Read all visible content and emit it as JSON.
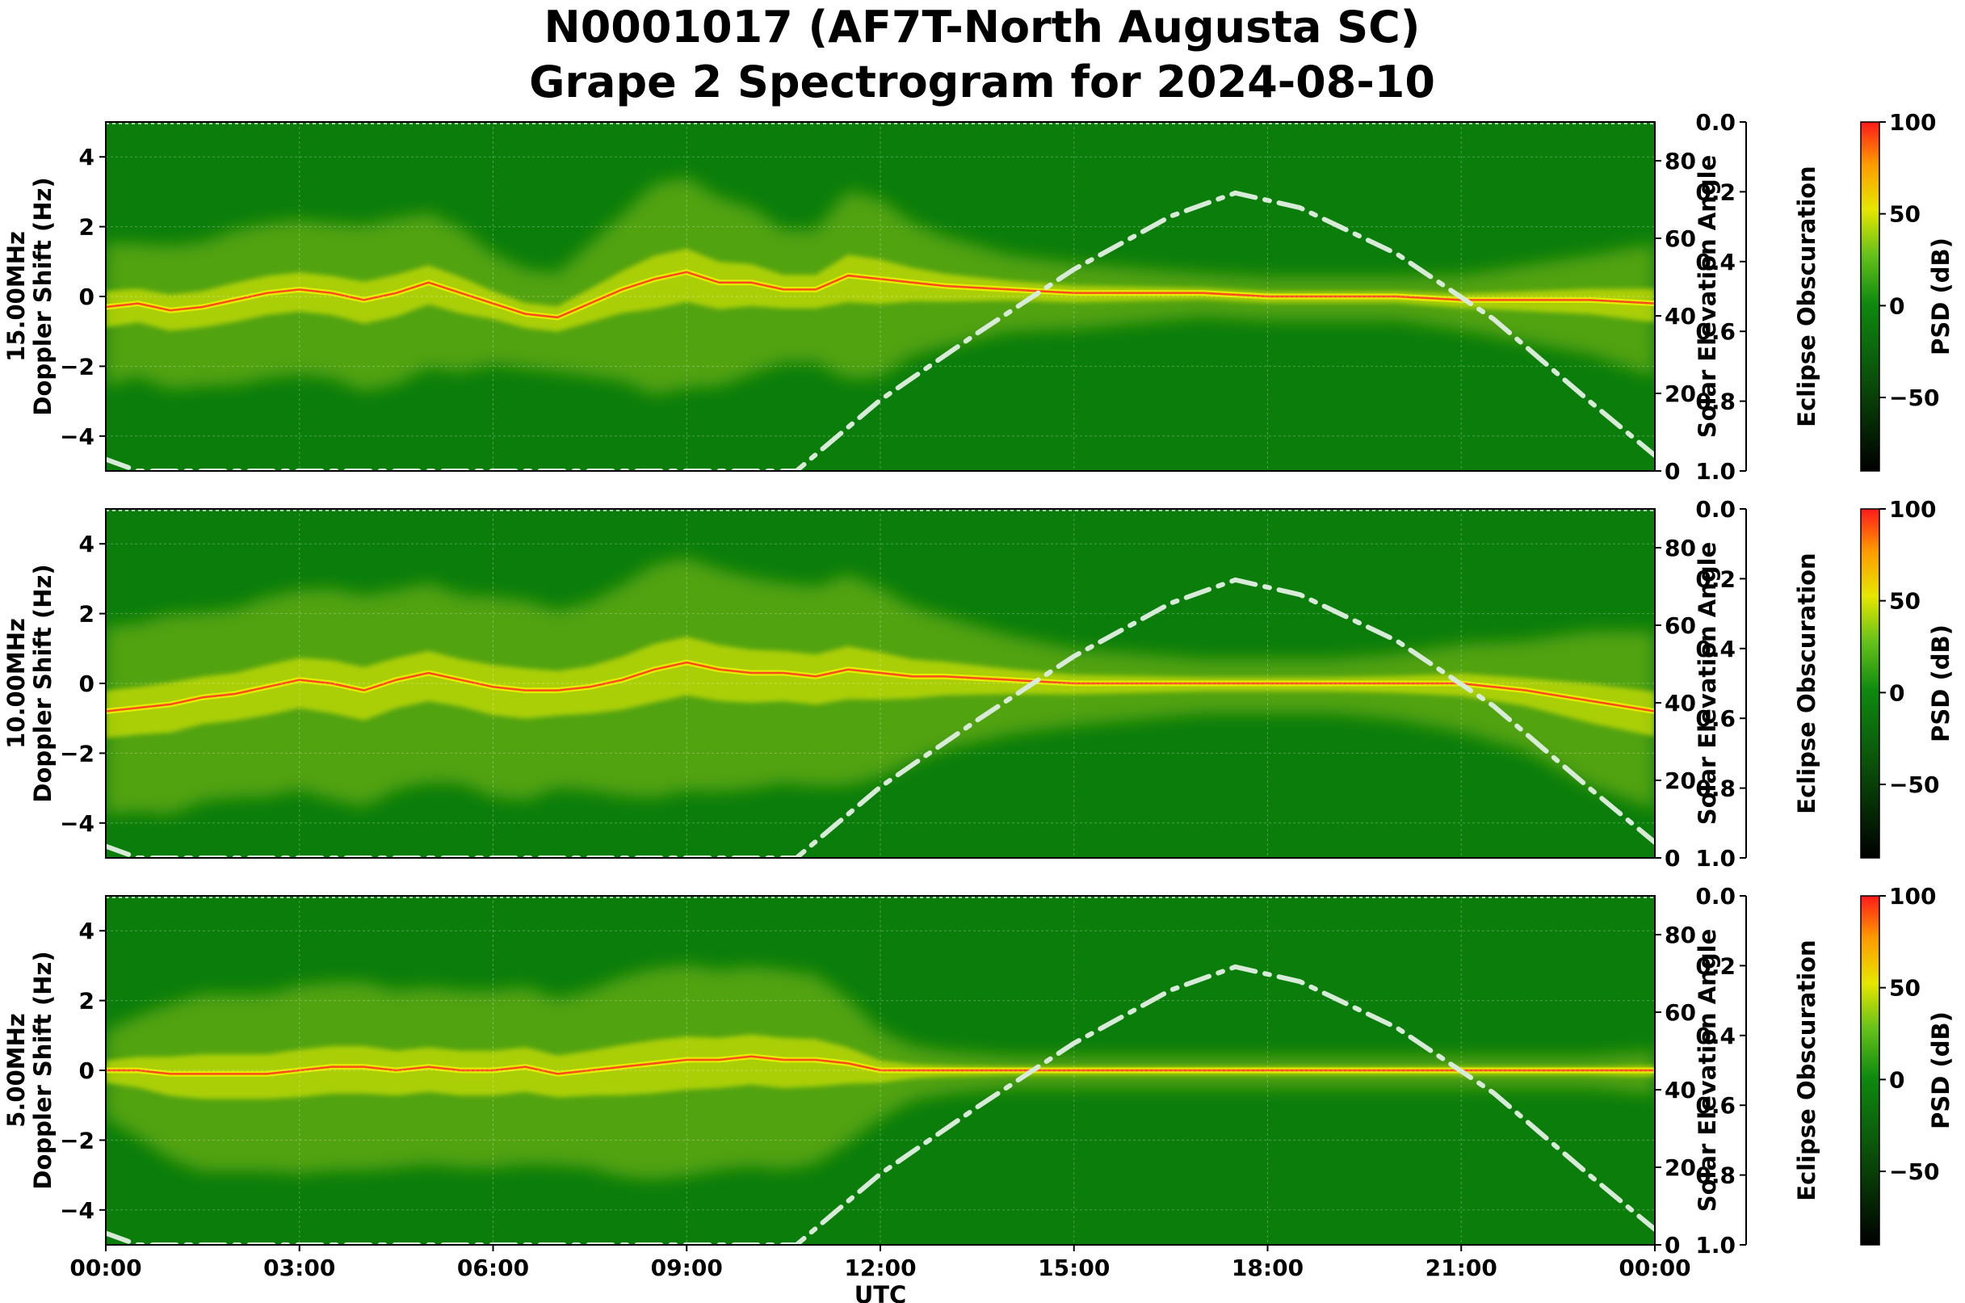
{
  "title": {
    "line1": "N0001017 (AF7T-North Augusta SC)",
    "line2": "Grape 2 Spectrogram for 2024-08-10"
  },
  "chart_data": {
    "type": "heatmap",
    "x_label": "UTC",
    "x_ticks": [
      "00:00",
      "03:00",
      "06:00",
      "09:00",
      "12:00",
      "15:00",
      "18:00",
      "21:00",
      "00:00"
    ],
    "x_range_hours": [
      0,
      24
    ],
    "y_range_hz": [
      -5,
      5
    ],
    "y_ticks": [
      "4",
      "2",
      "0",
      "−2",
      "−4"
    ],
    "y_ticks_values": [
      4,
      2,
      0,
      -2,
      -4
    ],
    "solar_axis_label": "Solar Elevation Angle",
    "solar_range_deg": [
      0,
      90
    ],
    "solar_ticks": [
      "80",
      "60",
      "40",
      "20",
      "0"
    ],
    "solar_ticks_values": [
      80,
      60,
      40,
      20,
      0
    ],
    "eclipse_axis_label": "Eclipse Obscuration",
    "eclipse_ticks": [
      "0.0",
      "0.2",
      "0.4",
      "0.6",
      "0.8",
      "1.0"
    ],
    "colorbar_label": "PSD (dB)",
    "colorbar_ticks": [
      "100",
      "50",
      "0",
      "−50"
    ],
    "colorbar_ticks_values": [
      100,
      50,
      0,
      -50
    ],
    "colorbar_range_db": [
      -90,
      100
    ],
    "colors": {
      "background": "#0a7d0a",
      "trace": "#ff3b1f",
      "glow": "#f2f200",
      "solar_curve": "#d8ead8"
    },
    "solar_elevation": {
      "hours": [
        0,
        0.5,
        10.7,
        12,
        13.5,
        15,
        16.5,
        17.5,
        18.5,
        20,
        21.5,
        23,
        24
      ],
      "degrees": [
        3,
        0,
        0,
        18.3,
        35.5,
        52.0,
        65.7,
        71.7,
        67.9,
        56.0,
        39.2,
        17.8,
        4
      ]
    },
    "panels": [
      {
        "ylabel": "15.00MHz",
        "ylabel2": "Doppler Shift (Hz)",
        "trace_hours": [
          0,
          0.5,
          1,
          1.5,
          2,
          2.5,
          3,
          3.5,
          4,
          4.5,
          5,
          5.5,
          6,
          6.5,
          7,
          7.5,
          8,
          8.5,
          9,
          9.5,
          10,
          10.5,
          11,
          11.5,
          12,
          12.5,
          13,
          14,
          15,
          16,
          17,
          18,
          19,
          20,
          21,
          22,
          23,
          24
        ],
        "trace_hz": [
          -0.3,
          -0.2,
          -0.4,
          -0.3,
          -0.1,
          0.1,
          0.2,
          0.1,
          -0.1,
          0.1,
          0.4,
          0.1,
          -0.2,
          -0.5,
          -0.6,
          -0.2,
          0.2,
          0.5,
          0.7,
          0.4,
          0.4,
          0.2,
          0.2,
          0.6,
          0.5,
          0.4,
          0.3,
          0.2,
          0.1,
          0.1,
          0.1,
          0.0,
          0.0,
          0.0,
          -0.1,
          -0.1,
          -0.1,
          -0.2
        ],
        "activity": [
          0.55,
          0.5,
          0.55,
          0.55,
          0.6,
          0.6,
          0.6,
          0.6,
          0.65,
          0.65,
          0.6,
          0.55,
          0.4,
          0.35,
          0.35,
          0.5,
          0.65,
          0.85,
          0.85,
          0.75,
          0.65,
          0.5,
          0.5,
          0.75,
          0.7,
          0.5,
          0.4,
          0.25,
          0.2,
          0.15,
          0.1,
          0.1,
          0.1,
          0.1,
          0.15,
          0.25,
          0.35,
          0.5
        ]
      },
      {
        "ylabel": "10.00MHz",
        "ylabel2": "Doppler Shift (Hz)",
        "trace_hours": [
          0,
          0.5,
          1,
          1.5,
          2,
          2.5,
          3,
          3.5,
          4,
          4.5,
          5,
          5.5,
          6,
          6.5,
          7,
          7.5,
          8,
          8.5,
          9,
          9.5,
          10,
          10.5,
          11,
          11.5,
          12,
          12.5,
          13,
          14,
          15,
          16,
          17,
          18,
          19,
          20,
          21,
          22,
          23,
          24
        ],
        "trace_hz": [
          -0.8,
          -0.7,
          -0.6,
          -0.4,
          -0.3,
          -0.1,
          0.1,
          0.0,
          -0.2,
          0.1,
          0.3,
          0.1,
          -0.1,
          -0.2,
          -0.2,
          -0.1,
          0.1,
          0.4,
          0.6,
          0.4,
          0.3,
          0.3,
          0.2,
          0.4,
          0.3,
          0.2,
          0.2,
          0.1,
          0.0,
          0.0,
          0.0,
          0.0,
          0.0,
          0.0,
          0.0,
          -0.2,
          -0.5,
          -0.8
        ],
        "activity": [
          0.75,
          0.75,
          0.8,
          0.75,
          0.75,
          0.8,
          0.8,
          0.85,
          0.85,
          0.8,
          0.8,
          0.75,
          0.8,
          0.8,
          0.7,
          0.75,
          0.85,
          0.95,
          0.95,
          0.9,
          0.85,
          0.8,
          0.8,
          0.85,
          0.75,
          0.6,
          0.5,
          0.35,
          0.25,
          0.2,
          0.15,
          0.15,
          0.15,
          0.2,
          0.3,
          0.4,
          0.6,
          0.7
        ]
      },
      {
        "ylabel": "5.00MHz",
        "ylabel2": "Doppler Shift (Hz)",
        "trace_hours": [
          0,
          0.5,
          1,
          1.5,
          2,
          2.5,
          3,
          3.5,
          4,
          4.5,
          5,
          5.5,
          6,
          6.5,
          7,
          7.5,
          8,
          8.5,
          9,
          9.5,
          10,
          10.5,
          11,
          11.5,
          12,
          12.5,
          13,
          14,
          15,
          16,
          17,
          18,
          19,
          20,
          21,
          22,
          23,
          24
        ],
        "trace_hz": [
          0.0,
          0.0,
          -0.1,
          -0.1,
          -0.1,
          -0.1,
          0.0,
          0.1,
          0.1,
          0.0,
          0.1,
          0.0,
          0.0,
          0.1,
          -0.1,
          0.0,
          0.1,
          0.2,
          0.3,
          0.3,
          0.4,
          0.3,
          0.3,
          0.2,
          0.0,
          0.0,
          0.0,
          0.0,
          0.0,
          0.0,
          0.0,
          0.0,
          0.0,
          0.0,
          0.0,
          0.0,
          0.0,
          0.0
        ],
        "activity": [
          0.3,
          0.45,
          0.6,
          0.7,
          0.7,
          0.7,
          0.75,
          0.75,
          0.75,
          0.7,
          0.7,
          0.7,
          0.7,
          0.7,
          0.65,
          0.7,
          0.8,
          0.85,
          0.85,
          0.8,
          0.8,
          0.8,
          0.75,
          0.55,
          0.3,
          0.15,
          0.1,
          0.05,
          0.05,
          0.05,
          0.05,
          0.05,
          0.05,
          0.05,
          0.05,
          0.05,
          0.05,
          0.1
        ]
      }
    ]
  }
}
